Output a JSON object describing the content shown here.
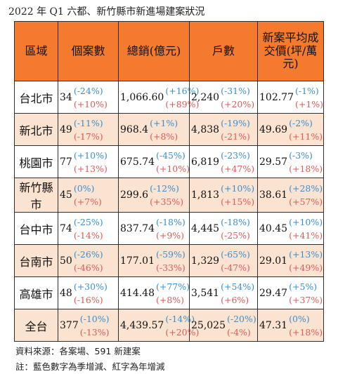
{
  "title": "2022 年 Q1 六都、新竹縣市新進場建案狀況",
  "header": {
    "region": "區域",
    "count": "個案數",
    "sales": "總銷(億元)",
    "units": "戶數",
    "price": "新案平均成交價(坪/萬元)"
  },
  "rows": [
    {
      "region": "台北市",
      "count": {
        "v": "34",
        "q": "(-24%)",
        "y": "(+10%)"
      },
      "sales": {
        "v": "1,066.60",
        "q": "(+16%)",
        "y": "(+89%)"
      },
      "units": {
        "v": "2,240",
        "q": "(-31%)",
        "y": "(+20%)"
      },
      "price": {
        "v": "102.77",
        "q": "(-1%)",
        "y": "(+1%)"
      }
    },
    {
      "region": "新北市",
      "count": {
        "v": "49",
        "q": "(-11%)",
        "y": "(-17%)"
      },
      "sales": {
        "v": "968.4",
        "q": "(+1%)",
        "y": "(+8%)"
      },
      "units": {
        "v": "4,838",
        "q": "(-19%)",
        "y": "(-21%)"
      },
      "price": {
        "v": "49.69",
        "q": "(-2%)",
        "y": "(+11%)"
      }
    },
    {
      "region": "桃園市",
      "count": {
        "v": "77",
        "q": "(+10%)",
        "y": "(+13%)"
      },
      "sales": {
        "v": "675.74",
        "q": "(-45%)",
        "y": "(+10%)"
      },
      "units": {
        "v": "6,819",
        "q": "(-23%)",
        "y": "(+47%)"
      },
      "price": {
        "v": "29.57",
        "q": "(-3%)",
        "y": "(+18%)"
      }
    },
    {
      "region": "新竹縣市",
      "count": {
        "v": "45",
        "q": "(0%)",
        "y": "(+7%)"
      },
      "sales": {
        "v": "299.6",
        "q": "(-12%)",
        "y": "(+35%)"
      },
      "units": {
        "v": "1,813",
        "q": "(+10%)",
        "y": "(+15%)"
      },
      "price": {
        "v": "38.61",
        "q": "(+28%)",
        "y": "(+57%)"
      }
    },
    {
      "region": "台中市",
      "count": {
        "v": "74",
        "q": "(-25%)",
        "y": "(-14%)"
      },
      "sales": {
        "v": "837.74",
        "q": "(-18%)",
        "y": "(+9%)"
      },
      "units": {
        "v": "4,445",
        "q": "(-18%)",
        "y": "(-25%)"
      },
      "price": {
        "v": "40.45",
        "q": "(+10%)",
        "y": "(+41%)"
      }
    },
    {
      "region": "台南市",
      "count": {
        "v": "50",
        "q": "(-26%)",
        "y": "(-46%)"
      },
      "sales": {
        "v": "177.01",
        "q": "(-59%)",
        "y": "(-33%)"
      },
      "units": {
        "v": "1,329",
        "q": "(-65%)",
        "y": "(-47%)"
      },
      "price": {
        "v": "29.01",
        "q": "(+13%)",
        "y": "(+49%)"
      }
    },
    {
      "region": "高雄市",
      "count": {
        "v": "48",
        "q": "(+30%)",
        "y": "(-16%)"
      },
      "sales": {
        "v": "414.48",
        "q": "(+77%)",
        "y": "(+8%)"
      },
      "units": {
        "v": "3,541",
        "q": "(+54%)",
        "y": "(+6%)"
      },
      "price": {
        "v": "29.47",
        "q": "(+5%)",
        "y": "(+37%)"
      }
    },
    {
      "region": "全台",
      "count": {
        "v": "377",
        "q": "(-10%)",
        "y": "(-13%)"
      },
      "sales": {
        "v": "4,439.57",
        "q": "(-14%)",
        "y": "(+20%)"
      },
      "units": {
        "v": "25,025",
        "q": "(-20%)",
        "y": "(-4%)"
      },
      "price": {
        "v": "47.31",
        "q": "(0%)",
        "y": "(+18%)"
      }
    }
  ],
  "source": "資料來源：各案場、591 新建案",
  "note": "註：藍色數字為季增減、紅字為年增減",
  "colors": {
    "header": "#f47b2e",
    "stripe": "#fbe3d1",
    "quarter_change": "#3a8fd0",
    "year_change": "#e05a5a"
  }
}
